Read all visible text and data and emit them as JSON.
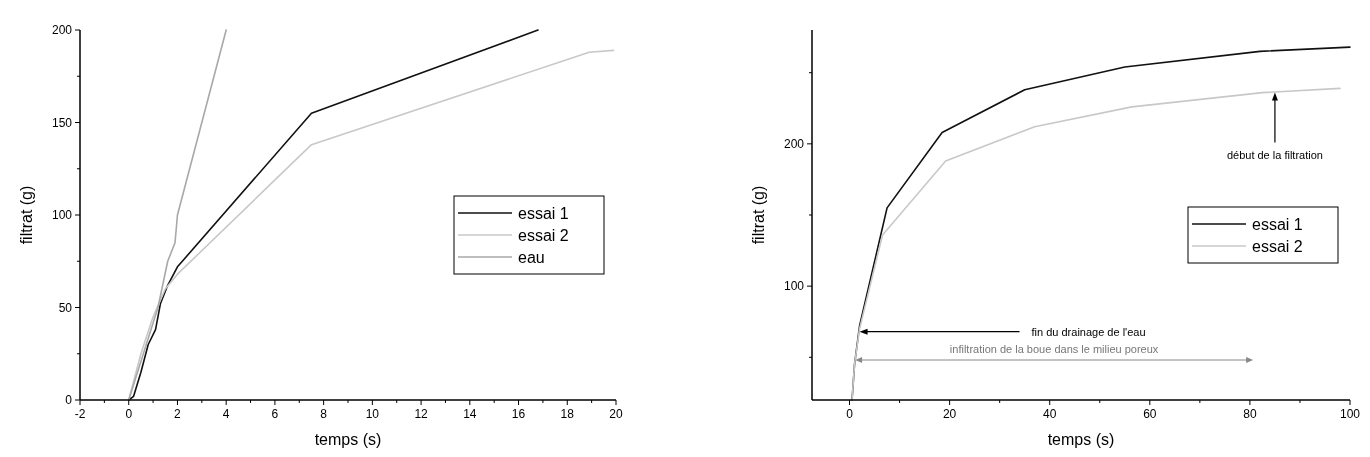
{
  "chart_data": [
    {
      "type": "line",
      "xlabel": "temps (s)",
      "ylabel": "filtrat (g)",
      "xlim": [
        -2,
        20
      ],
      "ylim": [
        0,
        200
      ],
      "xticks": [
        -2,
        {
          "value": -1,
          "label": null
        },
        0,
        {
          "value": 1,
          "label": null
        },
        2,
        {
          "value": 3,
          "label": null
        },
        4,
        {
          "value": 5,
          "label": null
        },
        6,
        {
          "value": 7,
          "label": null
        },
        8,
        {
          "value": 9,
          "label": null
        },
        10,
        {
          "value": 11,
          "label": null
        },
        12,
        {
          "value": 13,
          "label": null
        },
        14,
        {
          "value": 15,
          "label": null
        },
        16,
        {
          "value": 17,
          "label": null
        },
        18,
        {
          "value": 19,
          "label": null
        },
        20
      ],
      "yticks": [
        0,
        {
          "value": 25,
          "label": null
        },
        50,
        {
          "value": 75,
          "label": null
        },
        100,
        {
          "value": 125,
          "label": null
        },
        150,
        {
          "value": 175,
          "label": null
        },
        200
      ],
      "legend": "right",
      "series": [
        {
          "name": "essai 1",
          "color": "#111111",
          "x": [
            0,
            0.2,
            0.5,
            0.8,
            1.1,
            1.3,
            1.6,
            2,
            2.2,
            7.5,
            16.8
          ],
          "values": [
            0,
            2,
            15,
            30,
            38,
            52,
            62,
            72,
            75,
            155,
            200
          ]
        },
        {
          "name": "essai 2",
          "color": "#c8c8c8",
          "x": [
            0,
            0.5,
            1,
            1.5,
            2,
            7.5,
            18.9,
            19.9
          ],
          "values": [
            0,
            25,
            45,
            60,
            68,
            138,
            188,
            189
          ]
        },
        {
          "name": "eau",
          "color": "#a8a8a8",
          "x": [
            0,
            0.6,
            1.2,
            1.6,
            1.9,
            2,
            3,
            3.7,
            4
          ],
          "values": [
            0,
            25,
            50,
            75,
            85,
            100,
            150,
            185,
            200
          ]
        }
      ]
    },
    {
      "type": "line",
      "xlabel": "temps (s)",
      "ylabel": "filtrat (g)",
      "xlim": [
        -7.5,
        100
      ],
      "ylim": [
        20,
        280
      ],
      "xticks": [
        0,
        {
          "value": 10,
          "label": null
        },
        20,
        {
          "value": 30,
          "label": null
        },
        40,
        {
          "value": 50,
          "label": null
        },
        60,
        {
          "value": 70,
          "label": null
        },
        80,
        {
          "value": 90,
          "label": null
        },
        100
      ],
      "yticks": [
        {
          "value": 50,
          "label": null
        },
        100,
        {
          "value": 150,
          "label": null
        },
        200,
        {
          "value": 250,
          "label": null
        }
      ],
      "legend": "right",
      "series": [
        {
          "name": "essai 1",
          "color": "#111111",
          "x": [
            0.5,
            1,
            2,
            7.5,
            18.5,
            35,
            55,
            82,
            100
          ],
          "values": [
            20,
            45,
            72,
            155,
            208,
            238,
            254,
            265,
            268
          ]
        },
        {
          "name": "essai 2",
          "color": "#c8c8c8",
          "x": [
            0.5,
            1,
            2,
            6.6,
            19.2,
            37,
            56.4,
            82.5,
            98
          ],
          "values": [
            20,
            45,
            70,
            136,
            188,
            212,
            226,
            236,
            239
          ]
        }
      ],
      "annotations": [
        {
          "text": "fin du drainage de l'eau",
          "x": 2,
          "y": 68
        },
        {
          "text": "début de la filtration",
          "x": 85,
          "y": 236
        },
        "infiltration de la boue dans le milieu poreux"
      ]
    }
  ]
}
